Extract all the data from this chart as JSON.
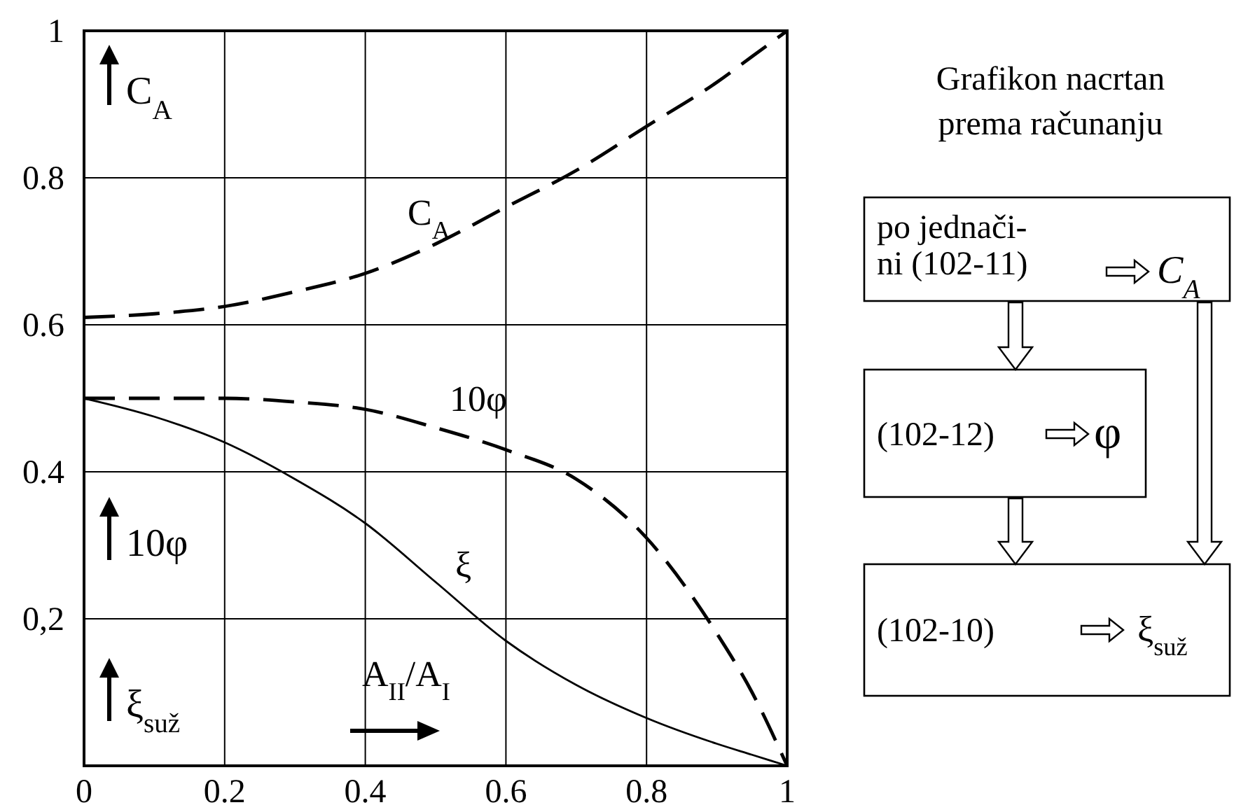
{
  "chart_data": [
    {
      "type": "line",
      "xlabel": "A$_{II}$/A$_{I}$",
      "x": [
        0,
        0.1,
        0.2,
        0.3,
        0.4,
        0.5,
        0.6,
        0.7,
        0.8,
        0.9,
        0.95,
        1
      ],
      "series": [
        {
          "name": "C$_{A}$",
          "color": "#000000",
          "line_style": "dashed",
          "values": [
            0.61,
            0.615,
            0.625,
            0.645,
            0.67,
            0.71,
            0.76,
            0.81,
            0.87,
            0.93,
            0.965,
            1
          ]
        },
        {
          "name": "10φ",
          "color": "#000000",
          "line_style": "dashed",
          "values": [
            0.5,
            0.5,
            0.5,
            0.495,
            0.485,
            0.46,
            0.43,
            0.39,
            0.31,
            0.18,
            0.1,
            0
          ]
        },
        {
          "name": "ξ",
          "color": "#000000",
          "line_style": "solid",
          "values": [
            0.5,
            0.475,
            0.44,
            0.39,
            0.33,
            0.25,
            0.17,
            0.11,
            0.065,
            0.03,
            0.015,
            0
          ]
        }
      ],
      "xlim": [
        0,
        1
      ],
      "ylim": [
        0,
        1
      ],
      "xticks": [
        0,
        0.2,
        0.4,
        0.6,
        0.8,
        1
      ],
      "yticks": [
        {
          "value": 0.2,
          "label": "0,2"
        },
        0.4,
        0.6,
        0.8,
        1
      ],
      "grid": true,
      "annotations": [
        "C$_{A}$",
        "10φ",
        "ξ$_{suž}$"
      ]
    },
    {
      "type": "other",
      "title": "Grafikon nacrtan prema računanju",
      "annotations": [
        "po jednači-\nni (102-11)",
        "C$_{A}$",
        "(102-12)",
        "φ",
        "(102-10)",
        "ξ$_{suž}$"
      ]
    }
  ]
}
